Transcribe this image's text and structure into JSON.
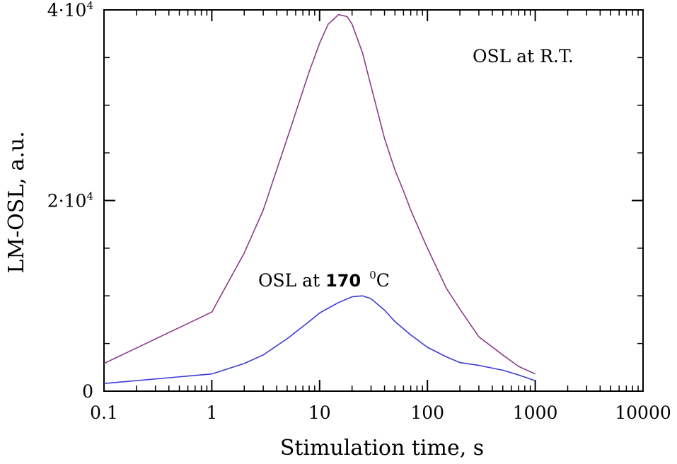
{
  "chart_data": {
    "type": "line",
    "xlabel": "Stimulation time, s",
    "ylabel": "LM-OSL, a.u.",
    "xscale": "log",
    "xlim": [
      0.1,
      10000
    ],
    "ylim": [
      0,
      40000
    ],
    "x_ticks": [
      {
        "value": 0.1,
        "label": "0.1"
      },
      {
        "value": 1,
        "label": "1"
      },
      {
        "value": 10,
        "label": "10"
      },
      {
        "value": 100,
        "label": "100"
      },
      {
        "value": 1000,
        "label": "1000"
      },
      {
        "value": 10000,
        "label": "10000"
      }
    ],
    "y_ticks": [
      {
        "value": 0,
        "base": "0",
        "exp": ""
      },
      {
        "value": 20000,
        "base": "2·10",
        "exp": "4"
      },
      {
        "value": 40000,
        "base": "4·10",
        "exp": "4"
      }
    ],
    "grid": false,
    "annotations": [
      {
        "id": "rt",
        "text": "OSL at R.T."
      },
      {
        "id": "t170",
        "prefix": "OSL at ",
        "bold": "170",
        "sup": "0",
        "suffix": "C"
      }
    ],
    "series": [
      {
        "id": "rt",
        "color": "#8a3d8a",
        "x": [
          0.1,
          1,
          2,
          3,
          5,
          8,
          10,
          12,
          15,
          18,
          20,
          25,
          30,
          40,
          50,
          60,
          70,
          80,
          100,
          150,
          200,
          300,
          500,
          700,
          1000
        ],
        "y": [
          2900,
          8300,
          14500,
          19000,
          26500,
          33500,
          36500,
          38500,
          39500,
          39300,
          38500,
          35500,
          32000,
          26500,
          23200,
          21000,
          19000,
          17500,
          15000,
          10800,
          8600,
          5700,
          3800,
          2600,
          1800
        ]
      },
      {
        "id": "t170",
        "color": "#3a3ad6",
        "x": [
          0.1,
          1,
          2,
          3,
          5,
          8,
          10,
          15,
          20,
          25,
          30,
          40,
          50,
          70,
          100,
          150,
          200,
          300,
          500,
          700,
          1000
        ],
        "y": [
          800,
          1800,
          2900,
          3800,
          5500,
          7300,
          8200,
          9300,
          9900,
          10000,
          9700,
          8500,
          7300,
          5900,
          4600,
          3600,
          3000,
          2700,
          2200,
          1700,
          1100
        ]
      }
    ]
  }
}
